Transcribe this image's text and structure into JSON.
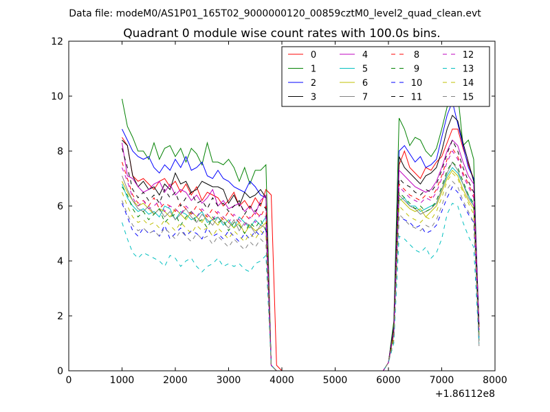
{
  "figure": {
    "suptitle": "Data file: modeM0/AS1P01_165T02_9000000120_00859cztM0_level2_quad_clean.evt",
    "offset_label": "+1.86112e8"
  },
  "chart_data": {
    "type": "line",
    "title": "Quadrant 0 module wise count rates with 100.0s bins.",
    "xlabel": "",
    "ylabel": "",
    "xlim": [
      0,
      8000
    ],
    "ylim": [
      0,
      12
    ],
    "x_offset": 186112000,
    "xticks": [
      0,
      1000,
      2000,
      3000,
      4000,
      5000,
      6000,
      7000,
      8000
    ],
    "yticks": [
      0,
      2,
      4,
      6,
      8,
      10,
      12
    ],
    "grid": false,
    "legend": {
      "position": "top-right",
      "columns": 4
    },
    "segments": [
      {
        "x_start": 1000,
        "x_end": 3900,
        "step": 100
      },
      {
        "x_start": 4000,
        "x_end": 5900,
        "step": 100
      },
      {
        "x_start": 6000,
        "x_end": 7700,
        "step": 100
      }
    ],
    "series": [
      {
        "name": "0",
        "color": "#ff0000",
        "dash": false,
        "values": [
          8.5,
          8.2,
          7.1,
          6.9,
          7.0,
          6.8,
          6.6,
          6.9,
          7.0,
          6.7,
          6.9,
          6.5,
          6.8,
          6.4,
          6.7,
          6.2,
          6.5,
          6.4,
          6.3,
          6.0,
          6.2,
          6.5,
          6.0,
          6.2,
          5.9,
          6.3,
          6.0,
          6.6,
          6.4,
          0.2,
          0,
          0,
          0,
          0,
          0,
          0,
          0,
          0,
          0,
          0,
          0,
          0,
          0,
          0,
          0,
          0,
          0,
          0,
          0,
          0,
          0.3,
          1.5,
          7.5,
          8.0,
          7.4,
          7.2,
          7.0,
          7.4,
          7.3,
          7.6,
          7.8,
          8.3,
          8.8,
          8.8,
          8.1,
          7.5,
          7.0,
          1.6
        ]
      },
      {
        "name": "1",
        "color": "#008000",
        "dash": false,
        "values": [
          9.9,
          8.9,
          8.5,
          8.0,
          8.0,
          7.7,
          8.3,
          7.7,
          8.1,
          8.2,
          7.8,
          8.1,
          7.6,
          8.1,
          7.9,
          7.5,
          8.3,
          7.6,
          7.6,
          7.5,
          7.7,
          7.4,
          6.9,
          7.4,
          6.8,
          7.3,
          7.3,
          7.5,
          0.2,
          0,
          0,
          0,
          0,
          0,
          0,
          0,
          0,
          0,
          0,
          0,
          0,
          0,
          0,
          0,
          0,
          0,
          0,
          0,
          0,
          0,
          0.3,
          1.8,
          9.2,
          8.8,
          8.2,
          8.5,
          8.4,
          8.0,
          7.8,
          8.1,
          8.8,
          9.6,
          9.9,
          10.1,
          8.2,
          8.4,
          7.7,
          1.1
        ]
      },
      {
        "name": "2",
        "color": "#0000ff",
        "dash": false,
        "values": [
          8.8,
          8.4,
          8.0,
          7.8,
          7.7,
          7.8,
          7.4,
          7.2,
          7.5,
          7.3,
          7.7,
          7.4,
          7.8,
          7.3,
          7.4,
          7.6,
          7.1,
          7.0,
          7.3,
          7.0,
          6.9,
          6.7,
          6.6,
          6.5,
          6.9,
          6.7,
          6.4,
          6.3,
          0.2,
          0,
          0,
          0,
          0,
          0,
          0,
          0,
          0,
          0,
          0,
          0,
          0,
          0,
          0,
          0,
          0,
          0,
          0,
          0,
          0,
          0,
          0.3,
          1.6,
          8.0,
          8.2,
          7.9,
          7.6,
          7.8,
          7.4,
          7.5,
          7.7,
          8.5,
          9.3,
          9.8,
          9.0,
          8.2,
          7.4,
          7.0,
          1.7
        ]
      },
      {
        "name": "3",
        "color": "#000000",
        "dash": false,
        "values": [
          8.4,
          8.2,
          7.1,
          6.7,
          6.9,
          6.6,
          6.7,
          6.4,
          6.8,
          6.6,
          7.2,
          6.8,
          6.9,
          6.5,
          6.6,
          6.9,
          6.8,
          6.7,
          6.7,
          6.6,
          6.1,
          6.4,
          6.0,
          6.5,
          6.3,
          6.4,
          6.6,
          6.3,
          0.2,
          0,
          0,
          0,
          0,
          0,
          0,
          0,
          0,
          0,
          0,
          0,
          0,
          0,
          0,
          0,
          0,
          0,
          0,
          0,
          0,
          0,
          0.3,
          1.6,
          7.8,
          7.4,
          7.2,
          7.0,
          6.8,
          7.1,
          7.2,
          7.4,
          8.0,
          8.8,
          9.3,
          9.1,
          8.3,
          7.6,
          6.9,
          1.6
        ]
      },
      {
        "name": "4",
        "color": "#bf00bf",
        "dash": false,
        "values": [
          8.3,
          7.1,
          7.0,
          6.7,
          6.5,
          6.6,
          6.8,
          6.9,
          6.5,
          6.8,
          6.4,
          6.6,
          6.5,
          6.2,
          6.4,
          6.1,
          6.3,
          6.6,
          6.0,
          6.2,
          5.9,
          6.0,
          6.1,
          5.8,
          6.0,
          5.7,
          6.2,
          6.4,
          0.2,
          0,
          0,
          0,
          0,
          0,
          0,
          0,
          0,
          0,
          0,
          0,
          0,
          0,
          0,
          0,
          0,
          0,
          0,
          0,
          0,
          0,
          0.3,
          1.5,
          7.3,
          7.1,
          6.9,
          6.7,
          6.6,
          6.5,
          6.6,
          6.9,
          7.4,
          8.0,
          8.4,
          8.2,
          7.6,
          7.1,
          6.8,
          1.5
        ]
      },
      {
        "name": "5",
        "color": "#00bfbf",
        "dash": false,
        "values": [
          6.8,
          6.3,
          6.0,
          5.8,
          5.9,
          5.7,
          5.8,
          5.6,
          6.0,
          5.9,
          5.5,
          5.8,
          5.7,
          5.5,
          5.6,
          5.8,
          5.4,
          5.5,
          5.6,
          5.3,
          5.5,
          5.2,
          5.6,
          5.4,
          5.2,
          5.5,
          5.3,
          5.6,
          0.2,
          0,
          0,
          0,
          0,
          0,
          0,
          0,
          0,
          0,
          0,
          0,
          0,
          0,
          0,
          0,
          0,
          0,
          0,
          0,
          0,
          0,
          0.3,
          1.3,
          6.2,
          6.3,
          6.0,
          6.0,
          5.8,
          5.9,
          6.0,
          6.1,
          6.6,
          7.1,
          7.4,
          7.2,
          6.8,
          6.4,
          6.0,
          1.3
        ]
      },
      {
        "name": "6",
        "color": "#bfbf00",
        "dash": false,
        "values": [
          6.9,
          6.5,
          6.2,
          6.0,
          6.1,
          5.9,
          5.7,
          5.9,
          5.8,
          5.6,
          5.9,
          5.7,
          5.5,
          5.8,
          5.6,
          5.4,
          5.7,
          5.5,
          5.3,
          5.6,
          5.4,
          5.2,
          5.4,
          5.0,
          5.3,
          5.1,
          5.2,
          5.4,
          0.2,
          0,
          0,
          0,
          0,
          0,
          0,
          0,
          0,
          0,
          0,
          0,
          0,
          0,
          0,
          0,
          0,
          0,
          0,
          0,
          0,
          0,
          0.3,
          1.3,
          6.3,
          6.1,
          5.9,
          5.8,
          5.9,
          5.6,
          5.8,
          6.0,
          6.5,
          7.0,
          7.3,
          7.1,
          6.6,
          6.2,
          5.9,
          1.3
        ]
      },
      {
        "name": "7",
        "color": "#808080",
        "dash": false,
        "values": [
          7.1,
          6.6,
          6.2,
          5.9,
          5.8,
          6.0,
          5.7,
          5.9,
          5.6,
          5.8,
          5.5,
          5.7,
          5.9,
          5.6,
          5.4,
          5.7,
          5.5,
          5.3,
          5.6,
          5.4,
          5.2,
          5.5,
          5.1,
          5.4,
          5.3,
          5.0,
          5.3,
          5.2,
          0.2,
          0,
          0,
          0,
          0,
          0,
          0,
          0,
          0,
          0,
          0,
          0,
          0,
          0,
          0,
          0,
          0,
          0,
          0,
          0,
          0,
          0,
          0.3,
          1.4,
          6.4,
          6.2,
          6.0,
          5.9,
          5.7,
          5.8,
          5.9,
          6.1,
          6.6,
          7.2,
          7.6,
          7.3,
          6.8,
          6.3,
          6.0,
          0.9
        ]
      },
      {
        "name": "8",
        "color": "#ff0000",
        "dash": true,
        "values": [
          7.6,
          7.0,
          6.4,
          6.1,
          6.2,
          6.0,
          6.3,
          5.9,
          6.1,
          6.0,
          5.8,
          6.1,
          5.9,
          5.7,
          6.0,
          5.8,
          5.6,
          5.9,
          5.7,
          5.5,
          5.8,
          5.6,
          5.4,
          5.7,
          5.5,
          5.8,
          5.6,
          6.0,
          0.2,
          0,
          0,
          0,
          0,
          0,
          0,
          0,
          0,
          0,
          0,
          0,
          0,
          0,
          0,
          0,
          0,
          0,
          0,
          0,
          0,
          0,
          0.3,
          1.4,
          6.8,
          6.6,
          6.4,
          6.3,
          6.2,
          6.4,
          6.3,
          6.6,
          7.1,
          7.7,
          8.1,
          7.8,
          7.2,
          6.8,
          6.4,
          1.4
        ]
      },
      {
        "name": "9",
        "color": "#008000",
        "dash": true,
        "values": [
          6.7,
          6.4,
          5.9,
          5.6,
          5.8,
          5.5,
          5.7,
          5.9,
          5.4,
          5.6,
          5.7,
          5.3,
          5.6,
          5.8,
          5.4,
          5.5,
          5.2,
          5.6,
          5.4,
          5.5,
          5.1,
          5.4,
          5.3,
          5.0,
          5.4,
          5.2,
          5.5,
          5.1,
          0.2,
          0,
          0,
          0,
          0,
          0,
          0,
          0,
          0,
          0,
          0,
          0,
          0,
          0,
          0,
          0,
          0,
          0,
          0,
          0,
          0,
          0,
          0.3,
          1.3,
          6.5,
          6.3,
          6.1,
          5.9,
          6.0,
          5.8,
          5.9,
          6.2,
          6.7,
          7.3,
          7.6,
          7.4,
          6.9,
          6.4,
          6.1,
          1.3
        ]
      },
      {
        "name": "10",
        "color": "#0000ff",
        "dash": true,
        "values": [
          6.1,
          5.6,
          5.1,
          4.9,
          5.2,
          5.0,
          5.1,
          4.9,
          5.3,
          4.8,
          5.0,
          5.2,
          4.9,
          5.1,
          5.0,
          4.8,
          5.2,
          4.9,
          5.0,
          4.8,
          5.1,
          4.9,
          4.7,
          5.0,
          4.8,
          5.1,
          4.9,
          5.2,
          0.2,
          0,
          0,
          0,
          0,
          0,
          0,
          0,
          0,
          0,
          0,
          0,
          0,
          0,
          0,
          0,
          0,
          0,
          0,
          0,
          0,
          0,
          0.3,
          1.2,
          5.6,
          5.5,
          5.4,
          5.2,
          5.3,
          5.0,
          5.1,
          5.3,
          5.8,
          6.3,
          6.7,
          6.5,
          6.1,
          5.7,
          5.4,
          1.2
        ]
      },
      {
        "name": "11",
        "color": "#000000",
        "dash": true,
        "values": [
          8.1,
          7.4,
          6.6,
          6.3,
          6.5,
          6.2,
          6.4,
          6.1,
          6.6,
          6.3,
          6.5,
          6.0,
          6.3,
          6.5,
          6.1,
          6.2,
          5.9,
          6.3,
          6.0,
          6.1,
          5.8,
          6.0,
          6.2,
          5.7,
          6.0,
          5.8,
          6.1,
          5.9,
          0.2,
          0,
          0,
          0,
          0,
          0,
          0,
          0,
          0,
          0,
          0,
          0,
          0,
          0,
          0,
          0,
          0,
          0,
          0,
          0,
          0,
          0,
          0.3,
          1.5,
          7.0,
          6.8,
          6.7,
          6.5,
          6.4,
          6.6,
          6.5,
          6.8,
          7.3,
          7.9,
          8.4,
          8.0,
          7.4,
          6.9,
          6.5,
          1.5
        ]
      },
      {
        "name": "12",
        "color": "#bf00bf",
        "dash": true,
        "values": [
          7.4,
          6.9,
          6.3,
          6.0,
          6.2,
          5.9,
          6.0,
          6.2,
          5.8,
          6.0,
          5.9,
          5.7,
          6.0,
          5.8,
          5.6,
          5.9,
          5.7,
          5.5,
          5.8,
          5.6,
          5.4,
          5.7,
          5.5,
          5.3,
          5.6,
          5.4,
          5.7,
          5.6,
          0.2,
          0,
          0,
          0,
          0,
          0,
          0,
          0,
          0,
          0,
          0,
          0,
          0,
          0,
          0,
          0,
          0,
          0,
          0,
          0,
          0,
          0,
          0.3,
          1.4,
          6.7,
          6.5,
          6.3,
          6.2,
          6.1,
          6.3,
          6.2,
          6.5,
          7.0,
          7.6,
          8.0,
          7.7,
          7.1,
          6.7,
          6.3,
          1.4
        ]
      },
      {
        "name": "13",
        "color": "#00bfbf",
        "dash": true,
        "values": [
          5.4,
          4.8,
          4.3,
          4.1,
          4.3,
          4.2,
          4.1,
          4.0,
          3.8,
          4.2,
          4.1,
          3.8,
          4.0,
          4.1,
          3.8,
          3.6,
          3.8,
          3.9,
          4.1,
          3.8,
          3.9,
          3.8,
          3.9,
          3.7,
          3.6,
          3.9,
          4.0,
          4.2,
          0.2,
          0,
          0,
          0,
          0,
          0,
          0,
          0,
          0,
          0,
          0,
          0,
          0,
          0,
          0,
          0,
          0,
          0,
          0,
          0,
          0,
          0,
          0.3,
          1.0,
          4.9,
          4.8,
          4.6,
          4.4,
          4.3,
          4.5,
          4.1,
          4.3,
          4.8,
          5.7,
          6.1,
          6.0,
          5.4,
          4.9,
          4.5,
          1.0
        ]
      },
      {
        "name": "14",
        "color": "#bfbf00",
        "dash": true,
        "values": [
          6.5,
          6.0,
          5.6,
          5.4,
          5.5,
          5.3,
          5.4,
          5.2,
          5.5,
          5.3,
          5.1,
          5.4,
          5.2,
          5.0,
          5.3,
          5.1,
          5.2,
          4.9,
          5.2,
          5.0,
          4.8,
          5.1,
          4.9,
          4.7,
          5.0,
          4.8,
          5.1,
          4.9,
          0.2,
          0,
          0,
          0,
          0,
          0,
          0,
          0,
          0,
          0,
          0,
          0,
          0,
          0,
          0,
          0,
          0,
          0,
          0,
          0,
          0,
          0,
          0.3,
          1.2,
          6.0,
          5.8,
          5.6,
          5.5,
          5.4,
          5.6,
          5.5,
          5.8,
          6.3,
          6.9,
          7.2,
          7.0,
          6.5,
          6.1,
          5.7,
          1.2
        ]
      },
      {
        "name": "15",
        "color": "#808080",
        "dash": true,
        "values": [
          6.2,
          5.7,
          5.3,
          5.1,
          5.2,
          5.0,
          5.1,
          4.9,
          5.2,
          5.0,
          4.8,
          5.1,
          4.9,
          4.7,
          5.0,
          4.8,
          4.9,
          4.6,
          4.9,
          4.7,
          4.5,
          4.8,
          4.6,
          4.4,
          4.7,
          4.5,
          4.8,
          4.6,
          0.2,
          0,
          0,
          0,
          0,
          0,
          0,
          0,
          0,
          0,
          0,
          0,
          0,
          0,
          0,
          0,
          0,
          0,
          0,
          0,
          0,
          0,
          0.3,
          1.1,
          5.7,
          5.5,
          5.3,
          5.2,
          5.1,
          5.3,
          5.2,
          5.5,
          6.0,
          6.6,
          6.9,
          6.7,
          6.2,
          5.8,
          5.4,
          1.1
        ]
      }
    ]
  }
}
